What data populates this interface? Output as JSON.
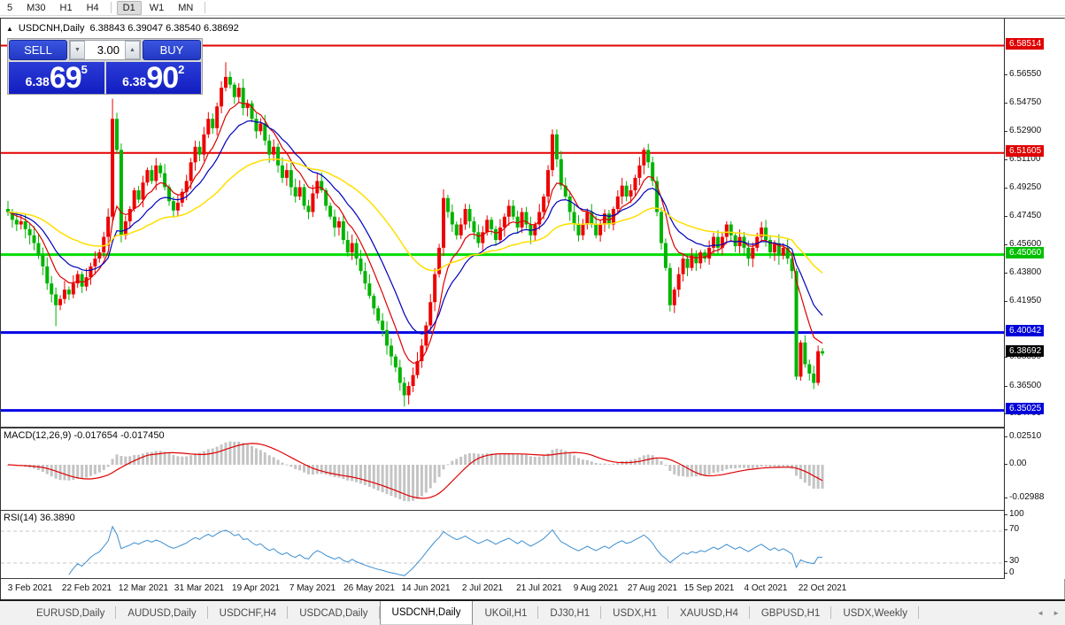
{
  "toolbar": {
    "timeframes": [
      "5",
      "M30",
      "H1",
      "H4",
      "D1",
      "W1",
      "MN"
    ],
    "selected": "D1"
  },
  "chart": {
    "collapse_icon": "▲",
    "symbol": "USDCNH,Daily",
    "ohlc_text": "6.38843 6.39047 6.38540 6.38692",
    "trade_panel": {
      "sell_label": "SELL",
      "buy_label": "BUY",
      "volume": "3.00",
      "spinner_down": "▼",
      "spinner_up": "▲",
      "sell_price_prefix": "6.38",
      "sell_price_big": "69",
      "sell_price_sup": "5",
      "buy_price_prefix": "6.38",
      "buy_price_big": "90",
      "buy_price_sup": "2"
    },
    "price_axis_ticks": [
      "6.56550",
      "6.54750",
      "6.52900",
      "6.51100",
      "6.49250",
      "6.47450",
      "6.45600",
      "6.43800",
      "6.41950",
      "6.38350",
      "6.36500",
      "6.34700"
    ],
    "badges": [
      {
        "text": "6.58514",
        "price": 6.58514,
        "color": "red"
      },
      {
        "text": "6.51605",
        "price": 6.51605,
        "color": "red"
      },
      {
        "text": "6.45060",
        "price": 6.4506,
        "color": "green"
      },
      {
        "text": "6.40042",
        "price": 6.40042,
        "color": "blue"
      },
      {
        "text": "6.38692",
        "price": 6.38692,
        "color": "black"
      },
      {
        "text": "6.35025",
        "price": 6.35025,
        "color": "blue"
      }
    ]
  },
  "macd": {
    "label": "MACD(12,26,9) -0.017654 -0.017450",
    "axis": [
      "0.02510",
      "0.00",
      "-0.02988"
    ]
  },
  "rsi": {
    "label": "RSI(14) 36.3890",
    "axis": [
      "100",
      "70",
      "30",
      "0"
    ]
  },
  "x_axis": {
    "labels": [
      "3 Feb 2021",
      "22 Feb 2021",
      "12 Mar 2021",
      "31 Mar 2021",
      "19 Apr 2021",
      "7 May 2021",
      "26 May 2021",
      "14 Jun 2021",
      "2 Jul 2021",
      "21 Jul 2021",
      "9 Aug 2021",
      "27 Aug 2021",
      "15 Sep 2021",
      "4 Oct 2021",
      "22 Oct 2021"
    ]
  },
  "tab_bar": {
    "tabs": [
      "EURUSD,Daily",
      "AUDUSD,Daily",
      "USDCHF,H4",
      "USDCAD,Daily",
      "USDCNH,Daily",
      "UKOil,H1",
      "DJ30,H1",
      "USDX,H1",
      "XAUUSD,H4",
      "GBPUSD,H1",
      "USDX,Weekly"
    ],
    "active": "USDCNH,Daily",
    "scroll_left": "◄",
    "scroll_right": "►"
  },
  "chart_data": {
    "type": "candlestick",
    "symbol": "USDCNH",
    "timeframe": "Daily",
    "ohlc_current": {
      "open": 6.38843,
      "high": 6.39047,
      "low": 6.3854,
      "close": 6.38692
    },
    "bull_color": "#ee0000",
    "bear_color": "#00b400",
    "closes": [
      6.478,
      6.473,
      6.47,
      6.472,
      6.467,
      6.463,
      6.458,
      6.45,
      6.443,
      6.432,
      6.425,
      6.418,
      6.422,
      6.428,
      6.425,
      6.432,
      6.438,
      6.43,
      6.436,
      6.443,
      6.448,
      6.452,
      6.462,
      6.475,
      6.538,
      6.518,
      6.463,
      6.472,
      6.48,
      6.492,
      6.486,
      6.497,
      6.505,
      6.498,
      6.508,
      6.503,
      6.494,
      6.485,
      6.479,
      6.484,
      6.491,
      6.498,
      6.51,
      6.52,
      6.515,
      6.528,
      6.538,
      6.532,
      6.546,
      6.558,
      6.565,
      6.56,
      6.552,
      6.558,
      6.545,
      6.548,
      6.538,
      6.53,
      6.535,
      6.524,
      6.515,
      6.52,
      6.508,
      6.5,
      6.505,
      6.494,
      6.488,
      6.494,
      6.482,
      6.478,
      6.49,
      6.498,
      6.492,
      6.482,
      6.475,
      6.468,
      6.472,
      6.46,
      6.452,
      6.458,
      6.448,
      6.44,
      6.432,
      6.424,
      6.416,
      6.408,
      6.402,
      6.392,
      6.385,
      6.378,
      6.368,
      6.36,
      6.366,
      6.373,
      6.382,
      6.392,
      6.405,
      6.42,
      6.438,
      6.455,
      6.487,
      6.478,
      6.47,
      6.463,
      6.47,
      6.48,
      6.472,
      6.465,
      6.458,
      6.465,
      6.473,
      6.467,
      6.46,
      6.468,
      6.475,
      6.482,
      6.475,
      6.468,
      6.478,
      6.47,
      6.463,
      6.47,
      6.478,
      6.488,
      6.505,
      6.528,
      6.512,
      6.495,
      6.488,
      6.478,
      6.47,
      6.463,
      6.47,
      6.478,
      6.47,
      6.463,
      6.47,
      6.477,
      6.47,
      6.48,
      6.488,
      6.495,
      6.488,
      6.492,
      6.5,
      6.508,
      6.518,
      6.51,
      6.498,
      6.478,
      6.458,
      6.442,
      6.418,
      6.428,
      6.438,
      6.448,
      6.442,
      6.45,
      6.445,
      6.452,
      6.448,
      6.455,
      6.462,
      6.455,
      6.462,
      6.47,
      6.463,
      6.456,
      6.462,
      6.455,
      6.448,
      6.455,
      6.462,
      6.468,
      6.46,
      6.452,
      6.458,
      6.45,
      6.455,
      6.448,
      6.44,
      6.372,
      6.394,
      6.38,
      6.374,
      6.368,
      6.3884,
      6.38692
    ],
    "moving_averages": [
      {
        "period": 8,
        "color": "#dd0000"
      },
      {
        "period": 16,
        "color": "#0000bb"
      },
      {
        "period": 45,
        "color": "#ffdf00"
      }
    ],
    "price_levels": [
      {
        "price": 6.58514,
        "color": "#e60000",
        "width": 2
      },
      {
        "price": 6.51605,
        "color": "#e60000",
        "width": 2
      },
      {
        "price": 6.4506,
        "color": "#00dc00",
        "width": 3
      },
      {
        "price": 6.40042,
        "color": "#0000e6",
        "width": 3
      },
      {
        "price": 6.35025,
        "color": "#0000e6",
        "width": 3
      }
    ],
    "macd": {
      "fast": 12,
      "slow": 26,
      "signal": 9,
      "main_value": -0.017654,
      "signal_value": -0.01745,
      "hist_color": "#c4c4c4",
      "signal_color": "#e00000",
      "scale_max": 0.0251,
      "scale_min": -0.02988
    },
    "rsi": {
      "period": 14,
      "value": 36.389,
      "color": "#3d8fd1",
      "levels": [
        70,
        30
      ],
      "scale": [
        100,
        70,
        30,
        0
      ]
    }
  }
}
